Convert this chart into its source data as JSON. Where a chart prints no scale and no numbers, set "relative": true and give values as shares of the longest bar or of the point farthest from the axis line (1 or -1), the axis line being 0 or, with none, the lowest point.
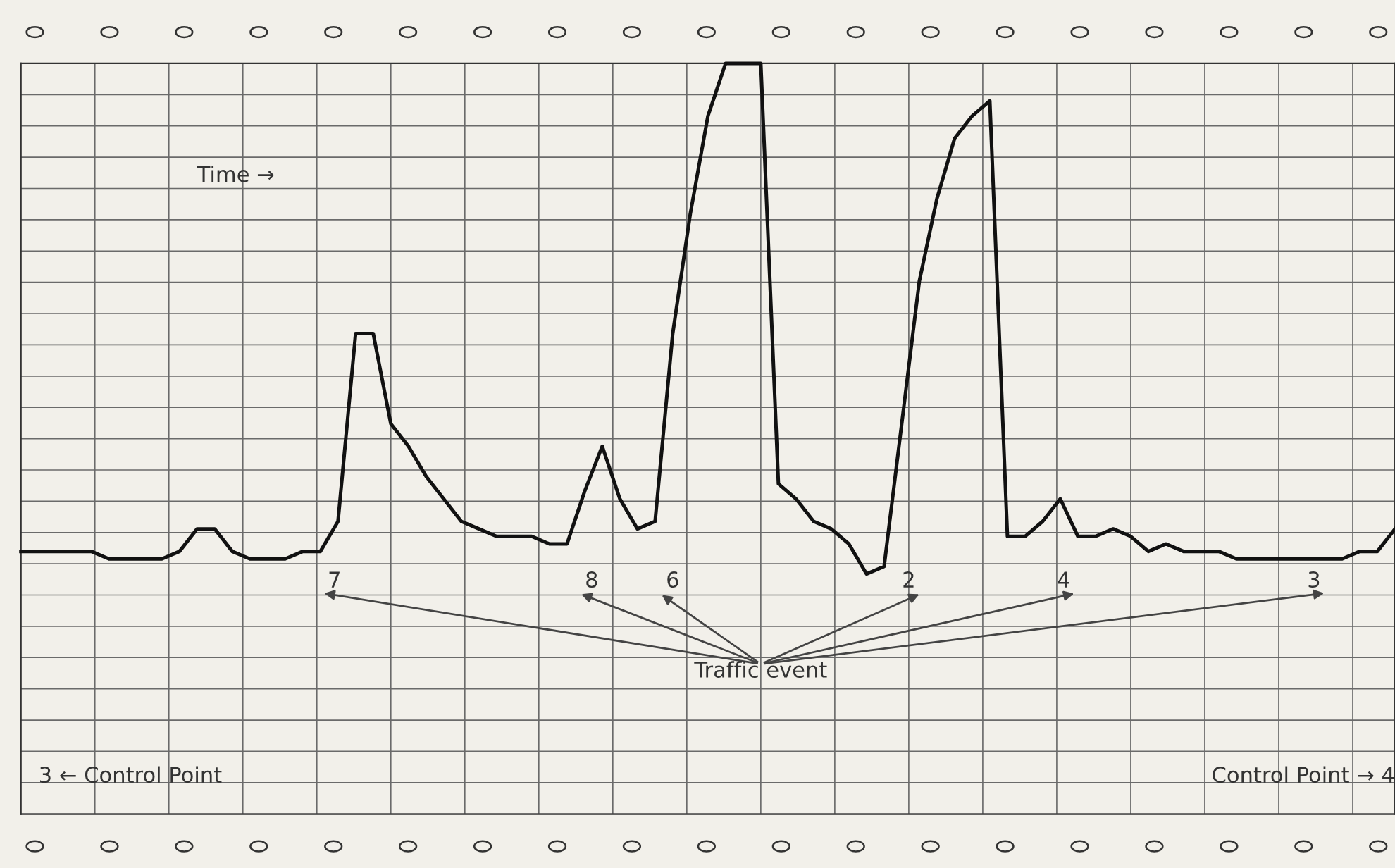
{
  "chart_data": {
    "type": "line",
    "relative": true,
    "tick_labels": false,
    "grid": true,
    "marker": "none",
    "line_style": "solid",
    "categories": [
      null,
      null,
      null,
      null,
      null,
      null,
      null,
      null,
      null,
      null,
      null,
      null,
      null,
      null,
      null,
      null,
      null,
      null,
      null,
      null,
      null,
      null,
      null,
      null,
      null,
      null,
      null,
      null,
      null,
      null,
      null,
      null,
      null,
      null,
      null,
      null,
      null,
      null,
      null,
      null,
      null,
      null,
      null,
      null,
      null,
      null,
      null,
      null,
      null,
      null,
      null,
      null,
      null,
      null,
      null,
      null,
      null,
      null,
      null,
      null,
      null,
      null,
      null,
      null,
      null,
      null,
      null,
      null,
      null,
      null,
      null,
      null,
      null,
      null,
      null,
      null,
      null,
      null,
      null
    ],
    "series": [
      {
        "color": "#111111",
        "values": [
          0.35,
          0.35,
          0.35,
          0.35,
          0.35,
          0.34,
          0.34,
          0.34,
          0.34,
          0.35,
          0.38,
          0.38,
          0.35,
          0.34,
          0.34,
          0.34,
          0.35,
          0.35,
          0.39,
          0.64,
          0.64,
          0.52,
          0.49,
          0.45,
          0.42,
          0.39,
          0.38,
          0.37,
          0.37,
          0.37,
          0.36,
          0.36,
          0.43,
          0.49,
          0.42,
          0.38,
          0.39,
          0.64,
          0.8,
          0.93,
          1.0,
          1.0,
          1.0,
          0.44,
          0.42,
          0.39,
          0.38,
          0.36,
          0.32,
          0.33,
          0.52,
          0.71,
          0.82,
          0.9,
          0.93,
          0.95,
          0.37,
          0.37,
          0.39,
          0.42,
          0.37,
          0.37,
          0.38,
          0.37,
          0.35,
          0.36,
          0.35,
          0.35,
          0.35,
          0.34,
          0.34,
          0.34,
          0.34,
          0.34,
          0.34,
          0.34,
          0.35,
          0.35,
          0.38
        ]
      }
    ],
    "annotations": [
      "Time →",
      "7",
      "8",
      "6",
      "2",
      "4",
      "3",
      "Traffic event",
      "3 ← Control Point",
      "Control Point → 4"
    ]
  }
}
